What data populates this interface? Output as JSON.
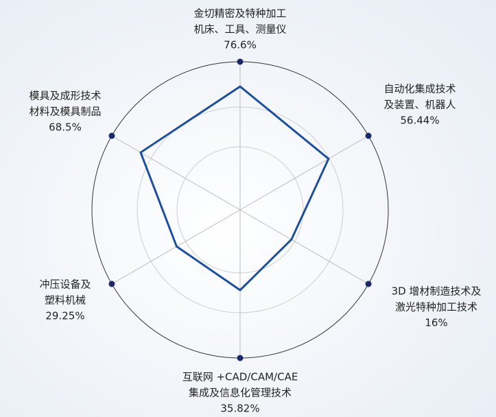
{
  "chart_data": {
    "type": "radar",
    "categories": [
      [
        "金切精密及特种加工",
        "机床、工具、测量仪"
      ],
      [
        "自动化集成技术",
        "及装置、机器人"
      ],
      [
        "3D 增材制造技术及",
        "激光特种加工技术"
      ],
      [
        "互联网 +CAD/CAM/CAE",
        "集成及信息化管理技术"
      ],
      [
        "冲压设备及",
        "塑料机械"
      ],
      [
        "模具及成形技术",
        "材料及模具制品"
      ]
    ],
    "values": [
      76.6,
      56.44,
      16,
      35.82,
      29.25,
      68.5
    ],
    "value_labels": [
      "76.6%",
      "56.44%",
      "16%",
      "35.82%",
      "29.25%",
      "68.5%"
    ],
    "rlim": [
      -40,
      100
    ],
    "color": "#1e4f9c",
    "marker_color": "#1a2a6c"
  }
}
